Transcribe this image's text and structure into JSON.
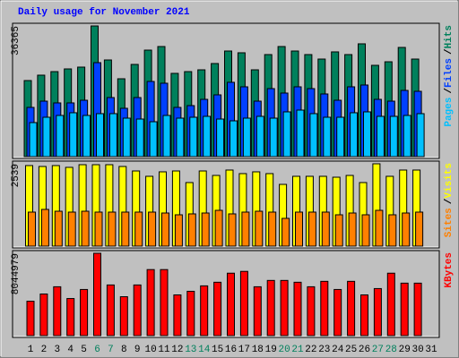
{
  "chart_data": {
    "type": "bar",
    "title": "Daily usage for November 2021",
    "title_color": "#0000ff",
    "categories": [
      "1",
      "2",
      "3",
      "4",
      "5",
      "6",
      "7",
      "8",
      "9",
      "10",
      "11",
      "12",
      "13",
      "14",
      "15",
      "16",
      "17",
      "18",
      "19",
      "20",
      "21",
      "22",
      "23",
      "24",
      "25",
      "26",
      "27",
      "28",
      "29",
      "30",
      "31"
    ],
    "highlighted_categories": [
      5,
      6,
      12,
      13,
      19,
      20,
      26,
      27
    ],
    "highlight_color": "#00805c",
    "legend_separator": "/",
    "panels": [
      {
        "ylim": [
          0,
          36365
        ],
        "yticks": [
          36365
        ],
        "series": [
          {
            "name": "Hits",
            "color": "#00805c",
            "values": [
              21170,
              22670,
              23660,
              24410,
              24910,
              36365,
              26900,
              21670,
              25660,
              29640,
              30640,
              23170,
              23660,
              24160,
              25910,
              29390,
              28900,
              24160,
              28400,
              30640,
              29390,
              28400,
              27150,
              29150,
              28400,
              31390,
              25410,
              26400,
              30390,
              27150,
              null
            ]
          },
          {
            "name": "Files",
            "color": "#0040ff",
            "values": [
              13700,
              15440,
              14950,
              14950,
              15690,
              26150,
              16440,
              13450,
              16440,
              20920,
              20430,
              13700,
              14200,
              15940,
              17190,
              20680,
              19430,
              15440,
              18930,
              17690,
              19430,
              18930,
              17440,
              15690,
              19430,
              19930,
              15940,
              15440,
              18430,
              18180,
              null
            ]
          },
          {
            "name": "Pages",
            "color": "#00c0ff",
            "values": [
              9470,
              10960,
              11460,
              12210,
              11460,
              11960,
              11960,
              10710,
              10460,
              9710,
              11460,
              10710,
              10960,
              11210,
              10460,
              9960,
              10710,
              11210,
              10710,
              12460,
              12950,
              11960,
              10960,
              10960,
              12210,
              12460,
              11210,
              11210,
              11460,
              11960,
              null
            ]
          }
        ]
      },
      {
        "ylim": [
          0,
          2539
        ],
        "yticks": [
          2539
        ],
        "series": [
          {
            "name": "Visits",
            "color": "#ffff00",
            "values": [
              2484,
              2456,
              2484,
              2429,
              2511,
              2511,
              2511,
              2456,
              2318,
              2153,
              2291,
              2318,
              1960,
              2318,
              2180,
              2346,
              2236,
              2291,
              2236,
              1904,
              2153,
              2153,
              2153,
              2125,
              2180,
              1960,
              2539,
              2153,
              2346,
              2346,
              null
            ]
          },
          {
            "name": "Sites",
            "color": "#ff8000",
            "values": [
              1049,
              1132,
              1076,
              1049,
              1076,
              1049,
              1049,
              1049,
              1049,
              1049,
              1021,
              966,
              994,
              1021,
              1104,
              994,
              1049,
              1076,
              1049,
              856,
              1049,
              1049,
              1049,
              966,
              1021,
              966,
              1104,
              966,
              1021,
              1049,
              null
            ]
          }
        ]
      },
      {
        "ylim": [
          0,
          8044979
        ],
        "yticks": [
          8044979
        ],
        "series": [
          {
            "name": "KBytes",
            "color": "#ff0000",
            "values": [
              3359400,
              4066700,
              4773900,
              3624600,
              4508700,
              8044979,
              4950700,
              3801500,
              4950700,
              6453600,
              6453600,
              3978300,
              4331900,
              4862300,
              5216000,
              6100000,
              6276800,
              4773900,
              5392800,
              5392800,
              5216000,
              4773900,
              5304400,
              4508700,
              5304400,
              3978300,
              4597100,
              6100000,
              5127500,
              5127500,
              null
            ]
          }
        ]
      }
    ]
  }
}
